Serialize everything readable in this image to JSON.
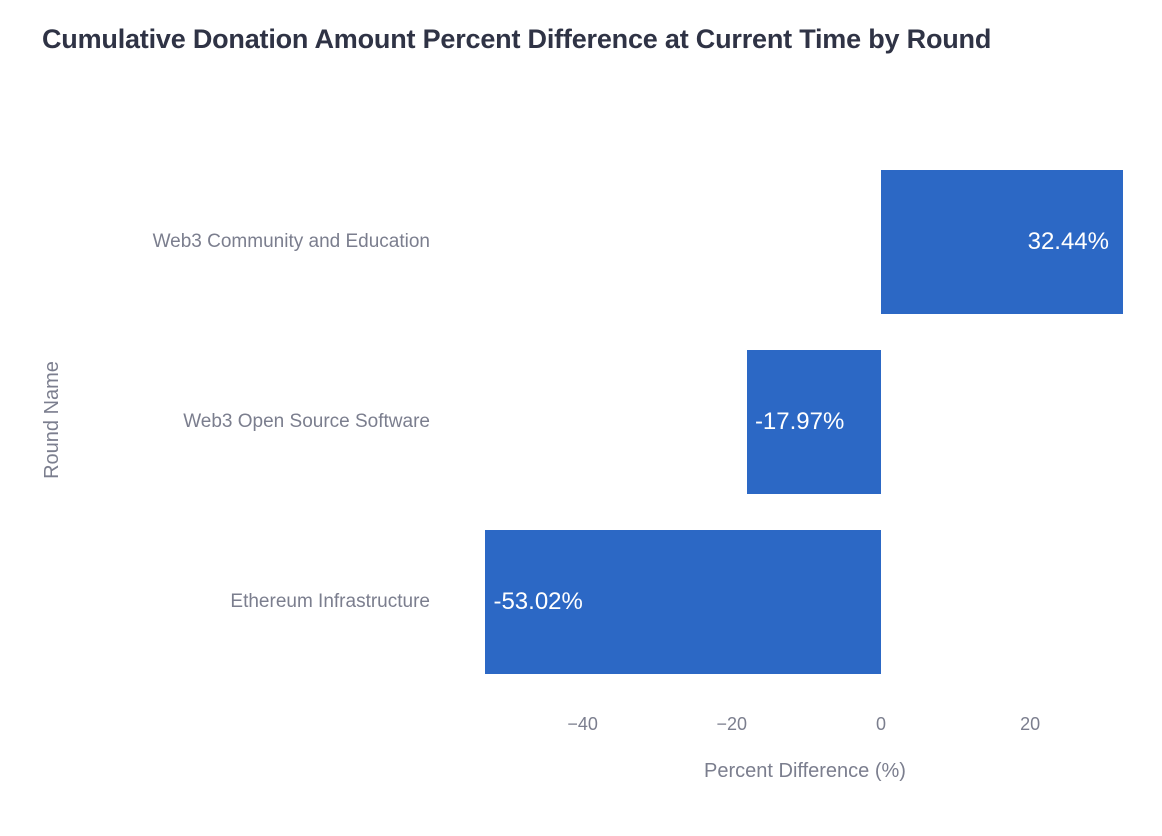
{
  "title": "Cumulative Donation Amount Percent Difference at Current Time by Round",
  "colors": {
    "bar": "#2c68c5",
    "title_text": "#2f3345",
    "axis_text": "#7b7e8e",
    "bar_label_text": "#ffffff",
    "background": "#ffffff"
  },
  "chart_data": {
    "type": "bar",
    "orientation": "horizontal",
    "title": "Cumulative Donation Amount Percent Difference at Current Time by Round",
    "categories": [
      "Web3 Community and Education",
      "Web3 Open Source Software",
      "Ethereum Infrastructure"
    ],
    "values": [
      32.44,
      -17.97,
      -53.02
    ],
    "bar_labels": [
      "32.44%",
      "-17.97%",
      "-53.02%"
    ],
    "xlabel": "Percent Difference (%)",
    "ylabel": "Round Name",
    "xticks": [
      -40,
      -20,
      0,
      20
    ],
    "xtick_labels": [
      "−40",
      "−20",
      "0",
      "20"
    ],
    "xlim": [
      -57,
      37
    ],
    "grid": false,
    "legend": false,
    "axis_lines": false
  }
}
